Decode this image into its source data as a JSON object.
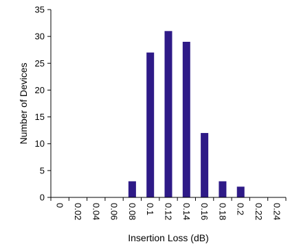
{
  "chart_data": {
    "type": "bar",
    "xlabel": "Insertion Loss (dB)",
    "ylabel": "Number of Devices",
    "ylim": [
      0,
      35
    ],
    "yticks": [
      "0",
      "5",
      "10",
      "15",
      "20",
      "25",
      "30",
      "35"
    ],
    "categories": [
      "0",
      "0.02",
      "0.04",
      "0.06",
      "0.08",
      "0.1",
      "0.12",
      "0.14",
      "0.16",
      "0.18",
      "0.2",
      "0.22",
      "0.24"
    ],
    "values": [
      0,
      0,
      0,
      0,
      3,
      27,
      31,
      29,
      12,
      3,
      2,
      0,
      0
    ],
    "bar_color": "#2e1a87",
    "grid": false,
    "legend": false
  }
}
